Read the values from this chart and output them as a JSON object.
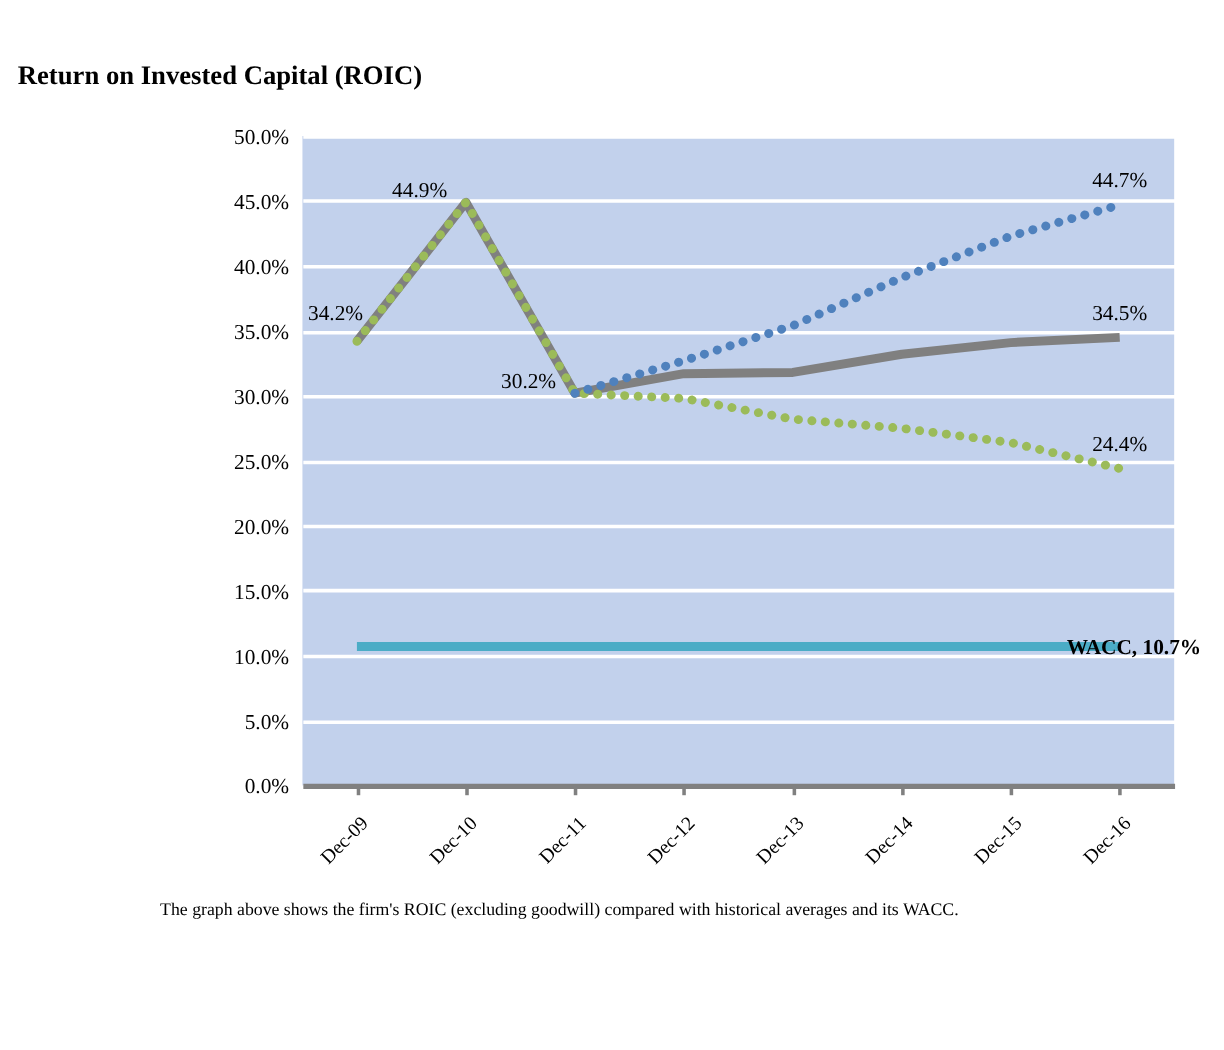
{
  "chart_data": {
    "type": "line",
    "title": "Return on Invested Capital (ROIC)",
    "categories": [
      "Dec-09",
      "Dec-10",
      "Dec-11",
      "Dec-12",
      "Dec-13",
      "Dec-14",
      "Dec-15",
      "Dec-16"
    ],
    "series": [
      {
        "color": "#808080",
        "line_style": "solid",
        "values": [
          34.2,
          44.9,
          30.2,
          31.7,
          31.8,
          33.2,
          34.1,
          34.5
        ],
        "value_labels": [
          "34.2%",
          "44.9%",
          "30.2%",
          null,
          null,
          null,
          null,
          "34.5%"
        ]
      },
      {
        "color": "#9bbb59",
        "line_style": "dotted",
        "values": [
          34.2,
          44.9,
          30.2,
          29.8,
          28.2,
          27.5,
          26.4,
          24.4
        ],
        "value_labels": [
          null,
          null,
          null,
          null,
          null,
          null,
          null,
          "24.4%"
        ]
      },
      {
        "color": "#4f81bd",
        "line_style": "dotted",
        "values": [
          null,
          null,
          30.2,
          32.7,
          35.4,
          39.1,
          42.3,
          44.7
        ],
        "value_labels": [
          null,
          null,
          null,
          null,
          null,
          null,
          null,
          "44.7%"
        ]
      },
      {
        "color": "#4bacc6",
        "line_style": "solid",
        "values": [
          10.7,
          10.7,
          10.7,
          10.7,
          10.7,
          10.7,
          10.7,
          10.7
        ]
      }
    ],
    "ylim": [
      0,
      50
    ],
    "yticks": [
      {
        "value": 0,
        "label": "0.0%"
      },
      {
        "value": 5,
        "label": "5.0%"
      },
      {
        "value": 10,
        "label": "10.0%"
      },
      {
        "value": 15,
        "label": "15.0%"
      },
      {
        "value": 20,
        "label": "20.0%"
      },
      {
        "value": 25,
        "label": "25.0%"
      },
      {
        "value": 30,
        "label": "30.0%"
      },
      {
        "value": 35,
        "label": "35.0%"
      },
      {
        "value": 40,
        "label": "40.0%"
      },
      {
        "value": 45,
        "label": "45.0%"
      },
      {
        "value": 50,
        "label": "50.0%"
      }
    ],
    "grid": "y",
    "marker": "none",
    "annotations": [
      {
        "text": "WACC, 10.7%",
        "x": "Dec-16",
        "y": 10.7
      },
      "The graph above shows the firm's ROIC (excluding goodwill) compared with historical averages and its WACC."
    ]
  }
}
